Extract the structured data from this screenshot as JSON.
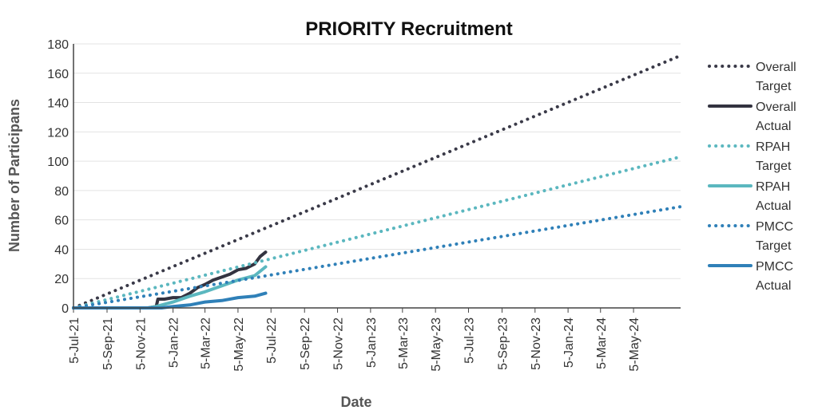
{
  "chart_data": {
    "type": "line",
    "title": "PRIORITY Recruitment",
    "xlabel": "Date",
    "ylabel": "Number of Participans",
    "ylim": [
      0,
      180
    ],
    "y_ticks": [
      0,
      20,
      40,
      60,
      80,
      100,
      120,
      140,
      160,
      180
    ],
    "xlim": [
      "2021-07-05",
      "2024-07-31"
    ],
    "x_ticks": [
      {
        "date": "2021-07-05",
        "label": "5-Jul-21"
      },
      {
        "date": "2021-09-05",
        "label": "5-Sep-21"
      },
      {
        "date": "2021-11-05",
        "label": "5-Nov-21"
      },
      {
        "date": "2022-01-05",
        "label": "5-Jan-22"
      },
      {
        "date": "2022-03-05",
        "label": "5-Mar-22"
      },
      {
        "date": "2022-05-05",
        "label": "5-May-22"
      },
      {
        "date": "2022-07-05",
        "label": "5-Jul-22"
      },
      {
        "date": "2022-09-05",
        "label": "5-Sep-22"
      },
      {
        "date": "2022-11-05",
        "label": "5-Nov-22"
      },
      {
        "date": "2023-01-05",
        "label": "5-Jan-23"
      },
      {
        "date": "2023-03-05",
        "label": "5-Mar-23"
      },
      {
        "date": "2023-05-05",
        "label": "5-May-23"
      },
      {
        "date": "2023-07-05",
        "label": "5-Jul-23"
      },
      {
        "date": "2023-09-05",
        "label": "5-Sep-23"
      },
      {
        "date": "2023-11-05",
        "label": "5-Nov-23"
      },
      {
        "date": "2024-01-05",
        "label": "5-Jan-24"
      },
      {
        "date": "2024-03-05",
        "label": "5-Mar-24"
      },
      {
        "date": "2024-05-05",
        "label": "5-May-24"
      }
    ],
    "grid": true,
    "legend_position": "right",
    "series": [
      {
        "name": "Overall Target",
        "legend_lines": [
          "Overall",
          "Target"
        ],
        "color": "#3a3a48",
        "style": "dotted",
        "points": [
          [
            "2021-07-05",
            0
          ],
          [
            "2024-07-31",
            172
          ]
        ]
      },
      {
        "name": "Overall Actual",
        "legend_lines": [
          "Overall",
          "Actual"
        ],
        "color": "#333340",
        "style": "solid",
        "points": [
          [
            "2021-07-05",
            0
          ],
          [
            "2021-11-20",
            0
          ],
          [
            "2021-12-05",
            1
          ],
          [
            "2021-12-08",
            6
          ],
          [
            "2021-12-20",
            6
          ],
          [
            "2022-01-05",
            7
          ],
          [
            "2022-01-20",
            7
          ],
          [
            "2022-02-05",
            10
          ],
          [
            "2022-02-20",
            14
          ],
          [
            "2022-03-05",
            16
          ],
          [
            "2022-03-20",
            19
          ],
          [
            "2022-04-05",
            21
          ],
          [
            "2022-04-20",
            23
          ],
          [
            "2022-05-05",
            26
          ],
          [
            "2022-05-20",
            27
          ],
          [
            "2022-06-05",
            30
          ],
          [
            "2022-06-15",
            35
          ],
          [
            "2022-06-25",
            38
          ]
        ]
      },
      {
        "name": "RPAH Target",
        "legend_lines": [
          "RPAH",
          "Target"
        ],
        "color": "#5bb7bf",
        "style": "dotted",
        "points": [
          [
            "2021-07-05",
            0
          ],
          [
            "2024-07-31",
            103
          ]
        ]
      },
      {
        "name": "RPAH Actual",
        "legend_lines": [
          "RPAH",
          "Actual"
        ],
        "color": "#5bb7bf",
        "style": "solid",
        "points": [
          [
            "2021-07-05",
            0
          ],
          [
            "2021-11-20",
            0
          ],
          [
            "2021-12-05",
            1
          ],
          [
            "2022-01-05",
            4
          ],
          [
            "2022-02-05",
            8
          ],
          [
            "2022-03-05",
            11
          ],
          [
            "2022-04-05",
            15
          ],
          [
            "2022-05-05",
            19
          ],
          [
            "2022-06-05",
            22
          ],
          [
            "2022-06-25",
            28
          ]
        ]
      },
      {
        "name": "PMCC Target",
        "legend_lines": [
          "PMCC",
          "Target"
        ],
        "color": "#2f80b8",
        "style": "dotted",
        "points": [
          [
            "2021-07-05",
            0
          ],
          [
            "2024-07-31",
            69
          ]
        ]
      },
      {
        "name": "PMCC Actual",
        "legend_lines": [
          "PMCC",
          "Actual"
        ],
        "color": "#2f80b8",
        "style": "solid",
        "points": [
          [
            "2021-07-05",
            0
          ],
          [
            "2021-12-15",
            0
          ],
          [
            "2022-01-05",
            1
          ],
          [
            "2022-02-05",
            2
          ],
          [
            "2022-03-05",
            4
          ],
          [
            "2022-04-05",
            5
          ],
          [
            "2022-05-05",
            7
          ],
          [
            "2022-06-05",
            8
          ],
          [
            "2022-06-25",
            10
          ]
        ]
      }
    ]
  }
}
